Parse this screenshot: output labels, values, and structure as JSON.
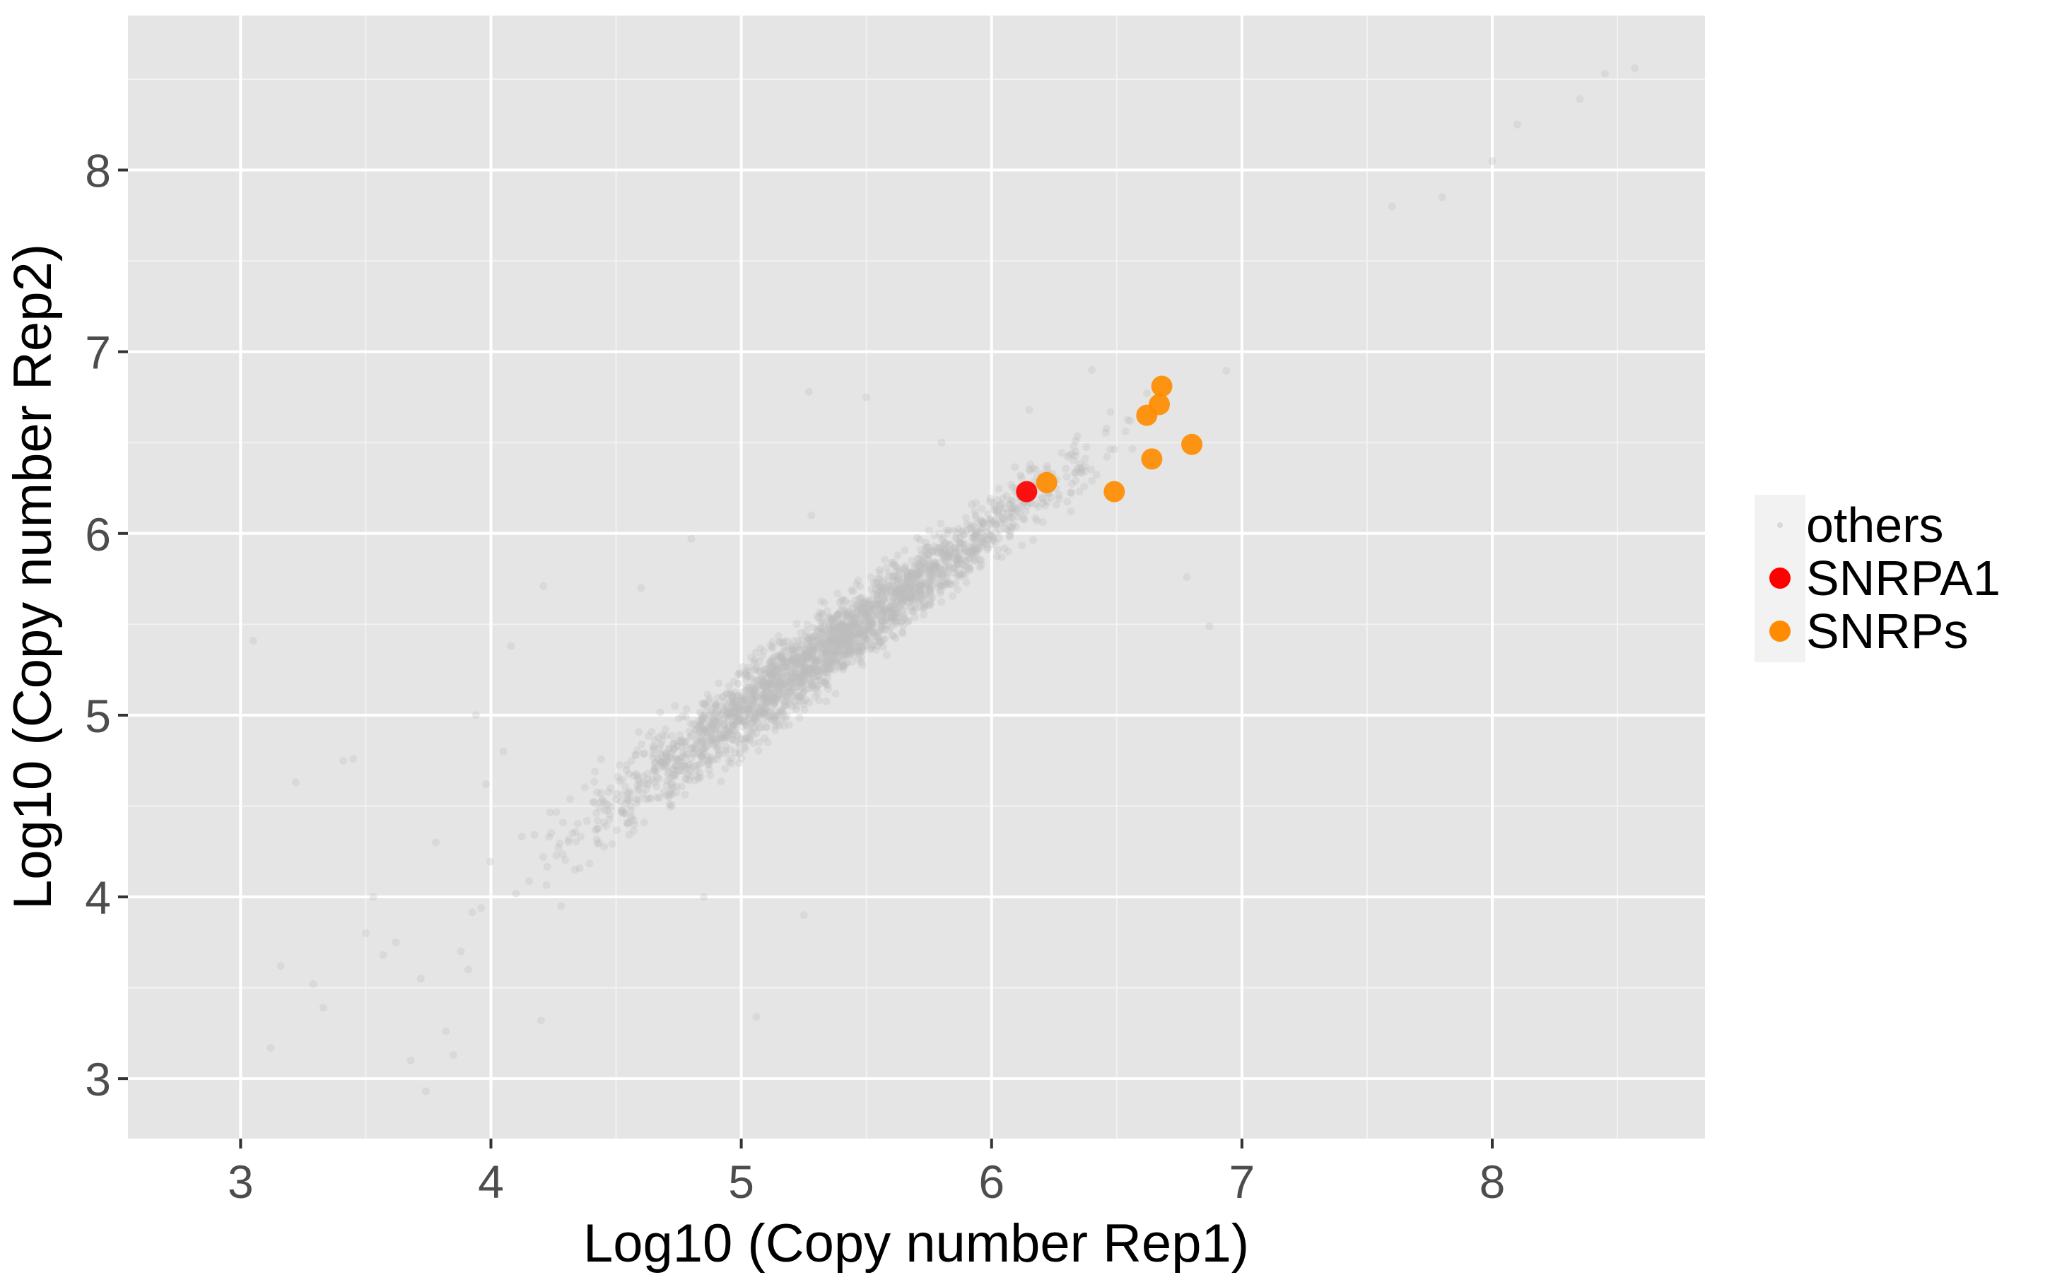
{
  "chart_data": {
    "type": "scatter",
    "title": "",
    "xlabel": "Log10 (Copy number Rep1)",
    "ylabel": "Log10 (Copy number Rep2)",
    "xlim": [
      2.55,
      8.85
    ],
    "ylim": [
      2.67,
      8.85
    ],
    "x_ticks": [
      3,
      4,
      5,
      6,
      7,
      8
    ],
    "y_ticks": [
      3,
      4,
      5,
      6,
      7,
      8
    ],
    "x_tick_labels": [
      "3",
      "4",
      "5",
      "6",
      "7",
      "8"
    ],
    "y_tick_labels": [
      "3",
      "4",
      "5",
      "6",
      "7",
      "8"
    ],
    "grid": true,
    "background": "#e5e5e5",
    "legend_position": "right",
    "others_cloud": {
      "approx_point_count": 2500,
      "trend": "y ≈ x",
      "x_range": [
        3.05,
        8.57
      ],
      "y_range": [
        2.93,
        8.56
      ]
    },
    "series": [
      {
        "name": "others",
        "color": "#bdbdbd",
        "opacity": 0.3,
        "marker": "small",
        "points": [
          [
            3.05,
            5.41
          ],
          [
            3.12,
            3.17
          ],
          [
            3.16,
            3.62
          ],
          [
            3.22,
            4.63
          ],
          [
            3.29,
            3.52
          ],
          [
            3.33,
            3.39
          ],
          [
            3.41,
            4.75
          ],
          [
            3.45,
            4.76
          ],
          [
            3.5,
            3.8
          ],
          [
            3.53,
            4.0
          ],
          [
            3.57,
            3.68
          ],
          [
            3.62,
            3.75
          ],
          [
            3.68,
            3.1
          ],
          [
            3.72,
            3.55
          ],
          [
            3.74,
            2.93
          ],
          [
            3.78,
            4.3
          ],
          [
            3.82,
            3.26
          ],
          [
            3.85,
            3.13
          ],
          [
            3.88,
            3.7
          ],
          [
            3.91,
            3.6
          ],
          [
            3.94,
            5.0
          ],
          [
            3.98,
            4.62
          ],
          [
            4.05,
            4.8
          ],
          [
            4.08,
            5.38
          ],
          [
            4.2,
            3.32
          ],
          [
            4.21,
            5.71
          ],
          [
            4.28,
            3.95
          ],
          [
            4.6,
            5.7
          ],
          [
            4.8,
            5.97
          ],
          [
            4.85,
            4.0
          ],
          [
            5.06,
            3.34
          ],
          [
            5.25,
            3.9
          ],
          [
            5.28,
            6.1
          ],
          [
            5.5,
            6.75
          ],
          [
            5.27,
            6.78
          ],
          [
            5.8,
            6.5
          ],
          [
            6.15,
            6.68
          ],
          [
            6.4,
            6.9
          ],
          [
            6.78,
            5.76
          ],
          [
            6.87,
            5.49
          ],
          [
            7.6,
            7.8
          ],
          [
            7.8,
            7.85
          ],
          [
            8.0,
            8.05
          ],
          [
            8.1,
            8.25
          ],
          [
            8.35,
            8.39
          ],
          [
            8.45,
            8.53
          ],
          [
            8.57,
            8.56
          ]
        ]
      },
      {
        "name": "SNRPA1",
        "color": "#ff0000",
        "points": [
          [
            6.14,
            6.23
          ]
        ]
      },
      {
        "name": "SNRPs",
        "color": "#ff8c00",
        "points": [
          [
            6.22,
            6.28
          ],
          [
            6.49,
            6.23
          ],
          [
            6.62,
            6.65
          ],
          [
            6.64,
            6.41
          ],
          [
            6.67,
            6.71
          ],
          [
            6.68,
            6.81
          ],
          [
            6.8,
            6.49
          ]
        ]
      }
    ],
    "legend": [
      "others",
      "SNRPA1",
      "SNRPs"
    ]
  }
}
